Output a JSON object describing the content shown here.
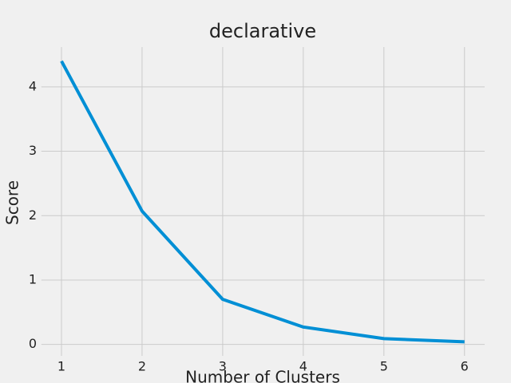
{
  "chart_data": {
    "type": "line",
    "title": "declarative",
    "x_label": "Number of Clusters",
    "y_label": "Score",
    "x": [
      1,
      2,
      3,
      4,
      5,
      6
    ],
    "series": [
      {
        "color": "#008fd5",
        "values": [
          4.4,
          2.07,
          0.7,
          0.27,
          0.09,
          0.04
        ]
      }
    ],
    "xlim": [
      0.75,
      6.25
    ],
    "xticks": [
      1,
      2,
      3,
      4,
      5,
      6
    ],
    "ylim": [
      -0.178,
      4.618
    ],
    "yticks": [
      0,
      1,
      2,
      3,
      4
    ],
    "grid": true
  }
}
